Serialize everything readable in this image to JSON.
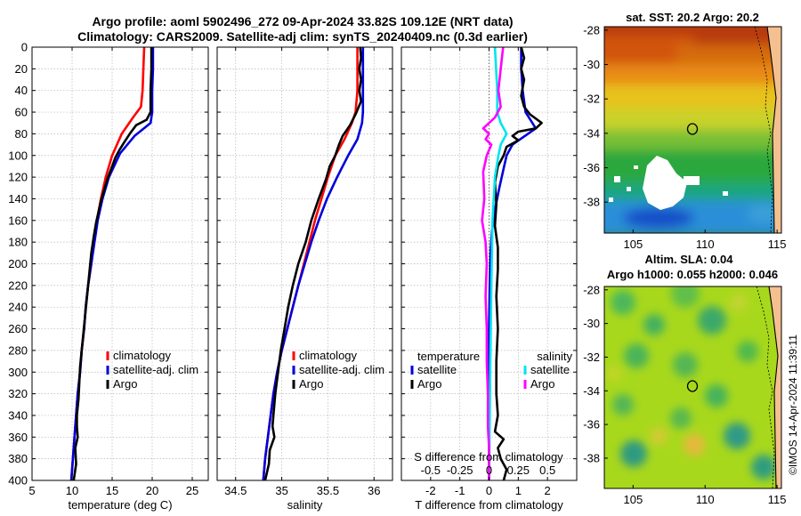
{
  "figure": {
    "title_line1": "Argo profile: aoml 5902496_272 09-Apr-2024 33.82S 109.12E (NRT data)",
    "title_line2": "Climatology: CARS2009. Satellite-adj clim: synTS_20240409.nc (0.3d earlier)",
    "watermark": "©IMOS 14-Apr-2024 11:39:11"
  },
  "colors": {
    "climatology": "#ff0000",
    "satellite": "#0000dd",
    "argo": "#000000",
    "s_satellite": "#00e5ee",
    "s_argo": "#ff00ff",
    "grid": "#b4b4b4"
  },
  "chart_data": [
    {
      "type": "line",
      "id": "temperature",
      "xlabel": "temperature (deg C)",
      "ylabel": "",
      "xlim": [
        5,
        27
      ],
      "ylim": [
        400,
        0
      ],
      "xticks": [
        "5",
        "10",
        "15",
        "20",
        "25"
      ],
      "yticks": [
        "0",
        "20",
        "40",
        "60",
        "80",
        "100",
        "120",
        "140",
        "160",
        "180",
        "200",
        "220",
        "240",
        "260",
        "280",
        "300",
        "320",
        "340",
        "360",
        "380",
        "400"
      ],
      "legend": [
        "climatology",
        "satellite-adj. clim",
        "Argo"
      ],
      "series": [
        {
          "name": "climatology",
          "color": "climatology",
          "points": [
            [
              19.0,
              0
            ],
            [
              18.9,
              20
            ],
            [
              18.8,
              40
            ],
            [
              18.6,
              55
            ],
            [
              17.6,
              65
            ],
            [
              16.2,
              80
            ],
            [
              15.0,
              100
            ],
            [
              14.2,
              120
            ],
            [
              13.6,
              140
            ],
            [
              13.1,
              160
            ],
            [
              12.7,
              180
            ],
            [
              12.4,
              200
            ],
            [
              12.0,
              220
            ],
            [
              11.7,
              240
            ],
            [
              11.5,
              260
            ],
            [
              11.2,
              280
            ],
            [
              11.0,
              300
            ],
            [
              10.7,
              320
            ],
            [
              10.5,
              340
            ],
            [
              10.3,
              360
            ],
            [
              10.1,
              380
            ],
            [
              9.9,
              400
            ]
          ]
        },
        {
          "name": "satellite-adj. clim",
          "color": "satellite",
          "points": [
            [
              20.1,
              0
            ],
            [
              20.1,
              20
            ],
            [
              20.0,
              40
            ],
            [
              20.0,
              60
            ],
            [
              19.8,
              70
            ],
            [
              17.8,
              82
            ],
            [
              16.0,
              98
            ],
            [
              14.6,
              120
            ],
            [
              13.8,
              140
            ],
            [
              13.2,
              160
            ],
            [
              12.8,
              180
            ],
            [
              12.4,
              200
            ],
            [
              12.0,
              220
            ],
            [
              11.7,
              240
            ],
            [
              11.5,
              260
            ],
            [
              11.2,
              280
            ],
            [
              11.0,
              300
            ],
            [
              10.7,
              320
            ],
            [
              10.5,
              340
            ],
            [
              10.3,
              360
            ],
            [
              10.1,
              380
            ],
            [
              9.9,
              400
            ]
          ]
        },
        {
          "name": "Argo",
          "color": "argo",
          "points": [
            [
              19.9,
              0
            ],
            [
              19.9,
              20
            ],
            [
              19.8,
              40
            ],
            [
              19.8,
              60
            ],
            [
              19.3,
              67
            ],
            [
              18.0,
              72
            ],
            [
              17.2,
              80
            ],
            [
              16.5,
              88
            ],
            [
              15.9,
              95
            ],
            [
              15.4,
              102
            ],
            [
              14.9,
              112
            ],
            [
              14.4,
              122
            ],
            [
              14.0,
              132
            ],
            [
              13.6,
              142
            ],
            [
              13.3,
              152
            ],
            [
              13.0,
              162
            ],
            [
              12.7,
              175
            ],
            [
              12.4,
              190
            ],
            [
              12.2,
              205
            ],
            [
              12.0,
              220
            ],
            [
              11.8,
              235
            ],
            [
              11.6,
              250
            ],
            [
              11.4,
              265
            ],
            [
              11.2,
              280
            ],
            [
              11.0,
              295
            ],
            [
              10.9,
              310
            ],
            [
              10.8,
              325
            ],
            [
              10.6,
              340
            ],
            [
              10.6,
              350
            ],
            [
              10.7,
              360
            ],
            [
              10.4,
              370
            ],
            [
              10.5,
              385
            ],
            [
              10.2,
              400
            ]
          ]
        }
      ]
    },
    {
      "type": "line",
      "id": "salinity",
      "xlabel": "salinity",
      "xlim": [
        34.3,
        36.2
      ],
      "ylim": [
        400,
        0
      ],
      "xticks": [
        "34.5",
        "35",
        "35.5",
        "36"
      ],
      "legend": [
        "climatology",
        "satellite-adj. clim",
        "Argo"
      ],
      "series": [
        {
          "name": "climatology",
          "color": "climatology",
          "points": [
            [
              35.82,
              0
            ],
            [
              35.82,
              20
            ],
            [
              35.82,
              40
            ],
            [
              35.8,
              60
            ],
            [
              35.76,
              70
            ],
            [
              35.68,
              85
            ],
            [
              35.58,
              100
            ],
            [
              35.5,
              120
            ],
            [
              35.43,
              140
            ],
            [
              35.36,
              160
            ],
            [
              35.3,
              180
            ],
            [
              35.24,
              200
            ],
            [
              35.18,
              220
            ],
            [
              35.12,
              240
            ],
            [
              35.06,
              260
            ],
            [
              35.0,
              280
            ],
            [
              34.95,
              300
            ],
            [
              34.91,
              320
            ],
            [
              34.88,
              340
            ],
            [
              34.85,
              360
            ],
            [
              34.82,
              380
            ],
            [
              34.8,
              400
            ]
          ]
        },
        {
          "name": "satellite-adj. clim",
          "color": "satellite",
          "points": [
            [
              35.88,
              0
            ],
            [
              35.88,
              20
            ],
            [
              35.88,
              40
            ],
            [
              35.88,
              60
            ],
            [
              35.87,
              70
            ],
            [
              35.82,
              85
            ],
            [
              35.72,
              100
            ],
            [
              35.6,
              120
            ],
            [
              35.49,
              140
            ],
            [
              35.4,
              160
            ],
            [
              35.32,
              180
            ],
            [
              35.25,
              200
            ],
            [
              35.18,
              220
            ],
            [
              35.12,
              240
            ],
            [
              35.06,
              260
            ],
            [
              35.0,
              280
            ],
            [
              34.95,
              300
            ],
            [
              34.91,
              320
            ],
            [
              34.88,
              340
            ],
            [
              34.85,
              360
            ],
            [
              34.82,
              380
            ],
            [
              34.8,
              400
            ]
          ]
        },
        {
          "name": "Argo",
          "color": "argo",
          "points": [
            [
              35.85,
              0
            ],
            [
              35.86,
              10
            ],
            [
              35.84,
              20
            ],
            [
              35.86,
              30
            ],
            [
              35.84,
              40
            ],
            [
              35.86,
              50
            ],
            [
              35.8,
              62
            ],
            [
              35.74,
              72
            ],
            [
              35.66,
              82
            ],
            [
              35.62,
              90
            ],
            [
              35.58,
              100
            ],
            [
              35.52,
              110
            ],
            [
              35.48,
              122
            ],
            [
              35.4,
              140
            ],
            [
              35.32,
              160
            ],
            [
              35.26,
              180
            ],
            [
              35.18,
              200
            ],
            [
              35.12,
              220
            ],
            [
              35.07,
              240
            ],
            [
              35.03,
              260
            ],
            [
              34.99,
              280
            ],
            [
              34.96,
              300
            ],
            [
              34.93,
              320
            ],
            [
              34.91,
              340
            ],
            [
              34.9,
              350
            ],
            [
              34.92,
              360
            ],
            [
              34.87,
              372
            ],
            [
              34.86,
              385
            ],
            [
              34.82,
              400
            ]
          ]
        }
      ]
    },
    {
      "type": "line",
      "id": "difference",
      "xlabel": "T difference from climatology",
      "xlabel_top": "S difference from climatology",
      "xlim": [
        -3,
        3
      ],
      "ylim": [
        400,
        0
      ],
      "xticks": [
        "-2",
        "-1",
        "0",
        "1",
        "2"
      ],
      "xticks_s": [
        "-0.5",
        "-0.25",
        "0",
        "0.25",
        "0.5"
      ],
      "legend_t_title": "temperature",
      "legend_s_title": "salinity",
      "legend_t": [
        "satellite",
        "Argo"
      ],
      "legend_s": [
        "satellite",
        "Argo"
      ],
      "series": [
        {
          "name": "T satellite",
          "color": "satellite",
          "points": [
            [
              1.1,
              0
            ],
            [
              1.1,
              20
            ],
            [
              1.15,
              40
            ],
            [
              1.25,
              60
            ],
            [
              1.6,
              75
            ],
            [
              0.8,
              90
            ],
            [
              0.6,
              100
            ],
            [
              0.5,
              112
            ],
            [
              0.35,
              130
            ],
            [
              0.2,
              150
            ],
            [
              0.1,
              170
            ],
            [
              0.05,
              190
            ],
            [
              0.02,
              220
            ],
            [
              0.0,
              260
            ],
            [
              0.0,
              400
            ]
          ]
        },
        {
          "name": "T Argo",
          "color": "argo",
          "points": [
            [
              1.1,
              0
            ],
            [
              1.2,
              10
            ],
            [
              1.1,
              20
            ],
            [
              1.2,
              30
            ],
            [
              1.1,
              45
            ],
            [
              1.2,
              55
            ],
            [
              1.4,
              62
            ],
            [
              1.8,
              70
            ],
            [
              1.6,
              75
            ],
            [
              1.0,
              78
            ],
            [
              0.8,
              82
            ],
            [
              1.0,
              86
            ],
            [
              0.6,
              92
            ],
            [
              0.5,
              100
            ],
            [
              0.3,
              110
            ],
            [
              0.2,
              125
            ],
            [
              0.25,
              145
            ],
            [
              0.2,
              165
            ],
            [
              0.3,
              185
            ],
            [
              0.3,
              205
            ],
            [
              0.25,
              230
            ],
            [
              0.3,
              260
            ],
            [
              0.25,
              290
            ],
            [
              0.25,
              320
            ],
            [
              0.3,
              340
            ],
            [
              0.2,
              355
            ],
            [
              0.5,
              362
            ],
            [
              0.3,
              370
            ],
            [
              0.4,
              380
            ],
            [
              0.6,
              390
            ],
            [
              0.5,
              400
            ]
          ]
        },
        {
          "name": "S satellite",
          "color": "s_satellite",
          "points": [
            [
              0.05,
              0
            ],
            [
              0.06,
              20
            ],
            [
              0.07,
              40
            ],
            [
              0.07,
              60
            ],
            [
              0.1,
              70
            ],
            [
              0.15,
              80
            ],
            [
              0.1,
              90
            ],
            [
              0.08,
              100
            ],
            [
              0.05,
              120
            ],
            [
              0.03,
              160
            ],
            [
              0.02,
              220
            ],
            [
              0.01,
              300
            ],
            [
              0.0,
              400
            ]
          ]
        },
        {
          "name": "S Argo",
          "color": "s_argo",
          "points": [
            [
              0.12,
              0
            ],
            [
              0.1,
              20
            ],
            [
              0.08,
              40
            ],
            [
              0.1,
              55
            ],
            [
              0.05,
              65
            ],
            [
              -0.05,
              75
            ],
            [
              0.0,
              80
            ],
            [
              -0.03,
              85
            ],
            [
              0.02,
              90
            ],
            [
              -0.02,
              100
            ],
            [
              -0.05,
              115
            ],
            [
              -0.04,
              140
            ],
            [
              -0.06,
              160
            ],
            [
              -0.03,
              180
            ],
            [
              -0.02,
              200
            ],
            [
              -0.03,
              230
            ],
            [
              -0.02,
              260
            ],
            [
              -0.02,
              290
            ],
            [
              -0.01,
              320
            ],
            [
              -0.01,
              350
            ],
            [
              0.0,
              370
            ],
            [
              0.0,
              400
            ]
          ]
        }
      ]
    },
    {
      "type": "heatmap",
      "id": "sst_map",
      "title": "sat. SST: 20.2 Argo: 20.2",
      "xticks": [
        "105",
        "110",
        "115"
      ],
      "yticks": [
        "-28",
        "-30",
        "-32",
        "-34",
        "-36",
        "-38"
      ],
      "xlim": [
        103,
        115.3
      ],
      "ylim": [
        -39.8,
        -27.8
      ],
      "marker": [
        109.12,
        -33.82
      ]
    },
    {
      "type": "heatmap",
      "id": "sla_map",
      "title_line1": "Altim. SLA: 0.04",
      "title_line2": "Argo h1000: 0.055 h2000: 0.046",
      "xticks": [
        "105",
        "110",
        "115"
      ],
      "yticks": [
        "-28",
        "-30",
        "-32",
        "-34",
        "-36",
        "-38"
      ],
      "xlim": [
        103,
        115.3
      ],
      "ylim": [
        -39.8,
        -27.8
      ],
      "marker": [
        109.12,
        -33.82
      ]
    }
  ]
}
